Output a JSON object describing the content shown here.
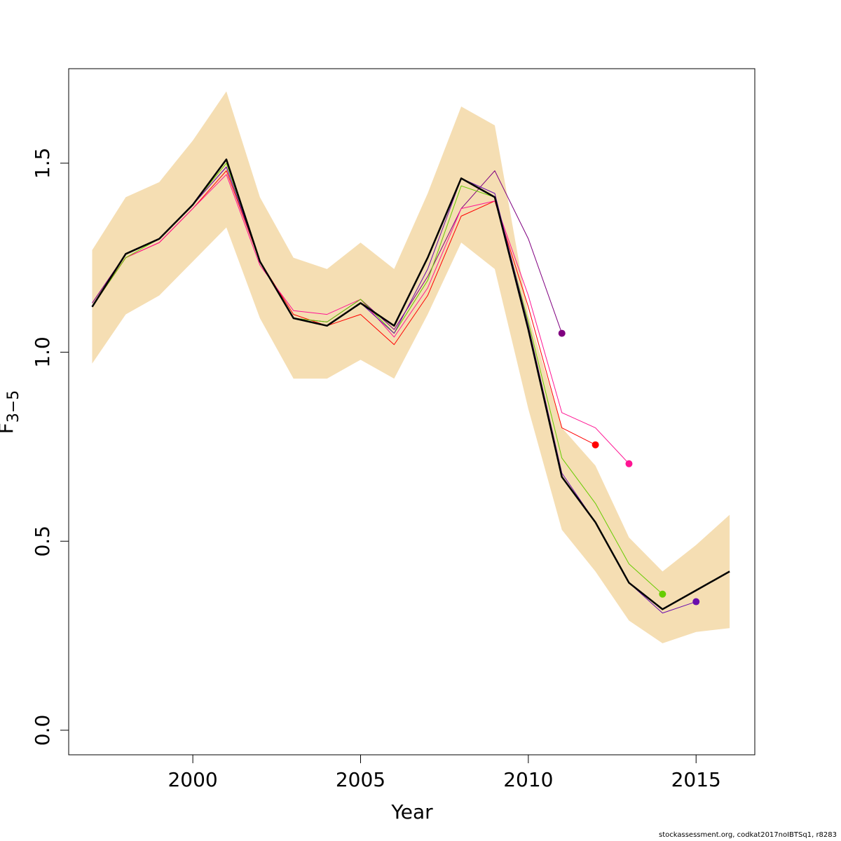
{
  "chart_data": {
    "type": "line",
    "xlabel": "Year",
    "ylabel_main": "F",
    "ylabel_sub": "3−5",
    "xlim": [
      1996.3,
      2016.75
    ],
    "ylim": [
      -0.065,
      1.75
    ],
    "xticks": [
      2000,
      2005,
      2010,
      2015
    ],
    "yticks": [
      0.0,
      0.5,
      1.0,
      1.5
    ],
    "ytick_labels": [
      "0.0",
      "0.5",
      "1.0",
      "1.5"
    ],
    "grid": false,
    "band": {
      "color": "#f5deb3",
      "x": [
        1997,
        1998,
        1999,
        2000,
        2001,
        2002,
        2003,
        2004,
        2005,
        2006,
        2007,
        2008,
        2009,
        2010,
        2011,
        2012,
        2013,
        2014,
        2015,
        2016
      ],
      "upper": [
        1.27,
        1.41,
        1.45,
        1.56,
        1.69,
        1.41,
        1.25,
        1.22,
        1.29,
        1.22,
        1.42,
        1.65,
        1.6,
        1.1,
        0.8,
        0.7,
        0.51,
        0.42,
        0.49,
        0.57
      ],
      "lower": [
        0.97,
        1.1,
        1.15,
        1.24,
        1.33,
        1.09,
        0.93,
        0.93,
        0.98,
        0.93,
        1.1,
        1.29,
        1.22,
        0.85,
        0.53,
        0.42,
        0.29,
        0.23,
        0.26,
        0.27
      ]
    },
    "series": [
      {
        "color": "#800080",
        "width": 1,
        "dot": true,
        "x": [
          1997,
          1998,
          1999,
          2000,
          2001,
          2002,
          2003,
          2004,
          2005,
          2006,
          2007,
          2008,
          2009,
          2010,
          2011
        ],
        "y": [
          1.13,
          1.26,
          1.3,
          1.39,
          1.49,
          1.24,
          1.09,
          1.08,
          1.14,
          1.06,
          1.2,
          1.38,
          1.48,
          1.3,
          1.05
        ]
      },
      {
        "color": "#ff0000",
        "width": 1,
        "dot": true,
        "x": [
          1997,
          1998,
          1999,
          2000,
          2001,
          2002,
          2003,
          2004,
          2005,
          2006,
          2007,
          2008,
          2009,
          2010,
          2011,
          2012
        ],
        "y": [
          1.12,
          1.25,
          1.29,
          1.38,
          1.48,
          1.24,
          1.1,
          1.07,
          1.1,
          1.02,
          1.15,
          1.36,
          1.4,
          1.12,
          0.8,
          0.755
        ]
      },
      {
        "color": "#ff1493",
        "width": 1,
        "dot": true,
        "x": [
          1997,
          1998,
          1999,
          2000,
          2001,
          2002,
          2003,
          2004,
          2005,
          2006,
          2007,
          2008,
          2009,
          2010,
          2011,
          2012,
          2013
        ],
        "y": [
          1.12,
          1.25,
          1.29,
          1.38,
          1.47,
          1.23,
          1.11,
          1.1,
          1.14,
          1.04,
          1.17,
          1.38,
          1.4,
          1.15,
          0.84,
          0.8,
          0.705
        ]
      },
      {
        "color": "#66cc00",
        "width": 1,
        "dot": true,
        "x": [
          1997,
          1998,
          1999,
          2000,
          2001,
          2002,
          2003,
          2004,
          2005,
          2006,
          2007,
          2008,
          2009,
          2010,
          2011,
          2012,
          2013,
          2014
        ],
        "y": [
          1.12,
          1.25,
          1.3,
          1.39,
          1.5,
          1.24,
          1.09,
          1.08,
          1.14,
          1.05,
          1.19,
          1.44,
          1.41,
          1.08,
          0.72,
          0.6,
          0.44,
          0.36
        ]
      },
      {
        "color": "#6a0dad",
        "width": 1,
        "dot": true,
        "x": [
          1997,
          1998,
          1999,
          2000,
          2001,
          2002,
          2003,
          2004,
          2005,
          2006,
          2007,
          2008,
          2009,
          2010,
          2011,
          2012,
          2013,
          2014,
          2015
        ],
        "y": [
          1.12,
          1.26,
          1.3,
          1.39,
          1.49,
          1.24,
          1.09,
          1.07,
          1.13,
          1.05,
          1.22,
          1.46,
          1.42,
          1.07,
          0.68,
          0.55,
          0.39,
          0.31,
          0.34
        ]
      },
      {
        "color": "#000000",
        "width": 2.5,
        "dot": false,
        "x": [
          1997,
          1998,
          1999,
          2000,
          2001,
          2002,
          2003,
          2004,
          2005,
          2006,
          2007,
          2008,
          2009,
          2010,
          2011,
          2012,
          2013,
          2014,
          2015,
          2016
        ],
        "y": [
          1.12,
          1.26,
          1.3,
          1.39,
          1.51,
          1.24,
          1.09,
          1.07,
          1.13,
          1.07,
          1.25,
          1.46,
          1.41,
          1.06,
          0.67,
          0.55,
          0.39,
          0.32,
          0.37,
          0.42
        ]
      }
    ]
  },
  "footer": "stockassessment.org, codkat2017noIBTSq1, r8283"
}
